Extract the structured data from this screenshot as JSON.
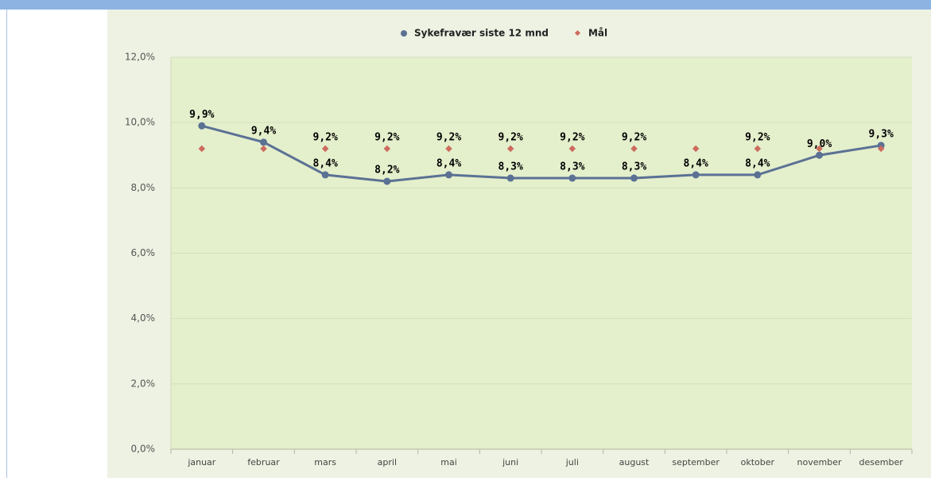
{
  "chart_data": {
    "type": "line",
    "categories": [
      "januar",
      "februar",
      "mars",
      "april",
      "mai",
      "juni",
      "juli",
      "august",
      "september",
      "oktober",
      "november",
      "desember"
    ],
    "series": [
      {
        "name": "Sykefravær siste 12 mnd",
        "color": "#5b7194",
        "marker": "circle",
        "values": [
          9.9,
          9.4,
          8.4,
          8.2,
          8.4,
          8.3,
          8.3,
          8.3,
          8.4,
          8.4,
          9.0,
          9.3
        ],
        "value_labels": [
          "9,9%",
          "9,4%",
          "8,4%",
          "8,2%",
          "8,4%",
          "8,3%",
          "8,3%",
          "8,3%",
          "8,4%",
          "8,4%",
          "9,0%",
          "9,3%"
        ]
      },
      {
        "name": "Mål",
        "color": "#cc6b5e",
        "marker": "diamond",
        "values": [
          9.2,
          9.2,
          9.2,
          9.2,
          9.2,
          9.2,
          9.2,
          9.2,
          9.2,
          9.2,
          9.2,
          9.2
        ],
        "value_labels": [
          null,
          null,
          "9,2%",
          "9,2%",
          "9,2%",
          "9,2%",
          "9,2%",
          "9,2%",
          null,
          "9,2%",
          null,
          null
        ]
      }
    ],
    "ylim": [
      0,
      12
    ],
    "yticks": [
      {
        "value": 0,
        "label": "0,0%"
      },
      {
        "value": 2,
        "label": "2,0%"
      },
      {
        "value": 4,
        "label": "4,0%"
      },
      {
        "value": 6,
        "label": "6,0%"
      },
      {
        "value": 8,
        "label": "8,0%"
      },
      {
        "value": 10,
        "label": "10,0%"
      },
      {
        "value": 12,
        "label": "12,0%"
      }
    ],
    "grid": true,
    "legend": "top"
  }
}
